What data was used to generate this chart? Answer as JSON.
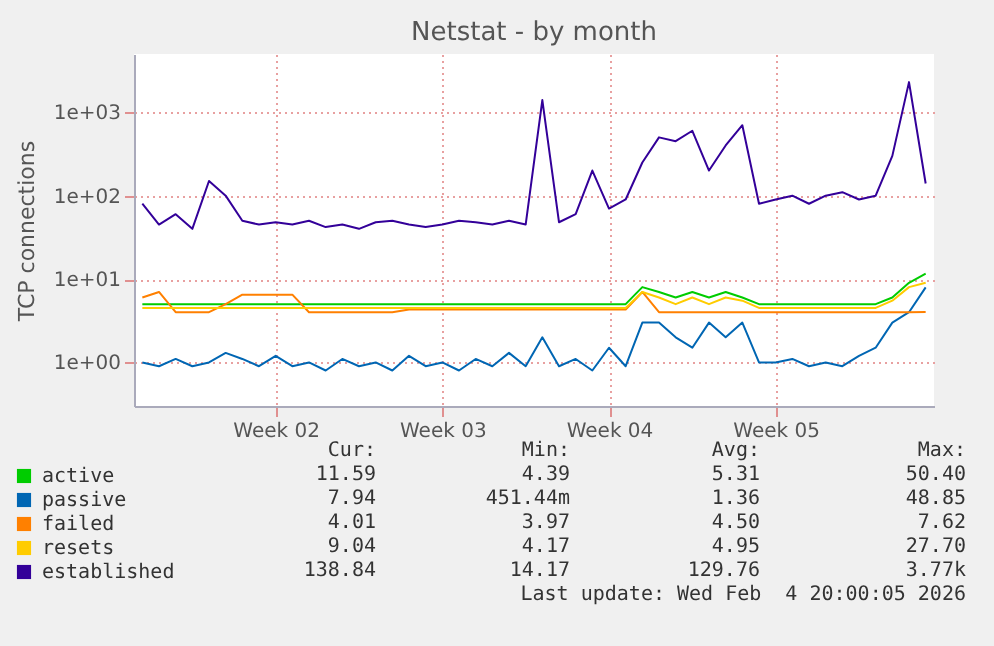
{
  "chart_data": {
    "type": "line",
    "title": "Netstat - by month",
    "ylabel": "TCP connections",
    "categories": [
      null,
      null,
      null,
      null,
      null,
      null,
      null,
      null,
      "Week 02",
      null,
      null,
      null,
      null,
      null,
      null,
      null,
      null,
      null,
      "Week 03",
      null,
      null,
      null,
      null,
      null,
      null,
      null,
      null,
      null,
      "Week 04",
      null,
      null,
      null,
      null,
      null,
      null,
      null,
      null,
      null,
      "Week 05",
      null,
      null,
      null,
      null,
      null,
      null,
      null,
      null,
      null
    ],
    "series": [
      {
        "name": "active",
        "color": "#00cc00",
        "values": [
          5,
          5,
          5,
          5,
          5,
          5,
          5,
          5,
          5,
          5,
          5,
          5,
          5,
          5,
          5,
          5,
          5,
          5,
          5,
          5,
          5,
          5,
          5,
          5,
          5,
          5,
          5,
          5,
          5,
          5,
          8,
          7,
          6,
          7,
          6,
          7,
          6,
          5,
          5,
          5,
          5,
          5,
          5,
          5,
          5,
          6,
          9,
          11.59
        ]
      },
      {
        "name": "passive",
        "color": "#0066b3",
        "values": [
          1,
          0.9,
          1.1,
          0.9,
          1,
          1.3,
          1.1,
          0.9,
          1.2,
          0.9,
          1,
          0.8,
          1.1,
          0.9,
          1,
          0.8,
          1.2,
          0.9,
          1,
          0.8,
          1.1,
          0.9,
          1.3,
          0.9,
          2,
          0.9,
          1.1,
          0.8,
          1.5,
          0.9,
          3,
          3,
          2,
          1.5,
          3,
          2,
          3,
          1,
          1,
          1.1,
          0.9,
          1,
          0.9,
          1.2,
          1.5,
          3,
          4,
          7.94
        ]
      },
      {
        "name": "failed",
        "color": "#ff8000",
        "values": [
          6,
          7,
          4,
          4,
          4,
          5,
          6.5,
          6.5,
          6.5,
          6.5,
          4,
          4,
          4,
          4,
          4,
          4,
          4.3,
          4.3,
          4.3,
          4.3,
          4.3,
          4.3,
          4.3,
          4.3,
          4.3,
          4.3,
          4.3,
          4.3,
          4.3,
          4.3,
          7,
          4,
          4,
          4,
          4,
          4,
          4,
          4,
          4,
          4,
          4,
          4,
          4,
          4,
          4,
          4,
          4,
          4.01
        ]
      },
      {
        "name": "resets",
        "color": "#ffcc00",
        "values": [
          4.5,
          4.5,
          4.5,
          4.5,
          4.5,
          4.5,
          4.5,
          4.5,
          4.5,
          4.5,
          4.5,
          4.5,
          4.5,
          4.5,
          4.5,
          4.5,
          4.5,
          4.5,
          4.5,
          4.5,
          4.5,
          4.5,
          4.5,
          4.5,
          4.5,
          4.5,
          4.5,
          4.5,
          4.5,
          4.5,
          7,
          6,
          5,
          6,
          5,
          6,
          5.5,
          4.5,
          4.5,
          4.5,
          4.5,
          4.5,
          4.5,
          4.5,
          4.5,
          5.5,
          8,
          9.04
        ]
      },
      {
        "name": "established",
        "color": "#330099",
        "values": [
          80,
          45,
          60,
          40,
          150,
          100,
          50,
          45,
          48,
          45,
          50,
          42,
          45,
          40,
          48,
          50,
          45,
          42,
          45,
          50,
          48,
          45,
          50,
          45,
          1400,
          48,
          60,
          200,
          70,
          90,
          250,
          500,
          450,
          600,
          200,
          400,
          700,
          80,
          90,
          100,
          80,
          100,
          110,
          90,
          100,
          300,
          2300,
          140
        ]
      }
    ],
    "ylim": [
      0.3,
      5000
    ],
    "yticks": [
      {
        "value": 1,
        "label": "1e+00"
      },
      {
        "value": 10,
        "label": "1e+01"
      },
      {
        "value": 100,
        "label": "1e+02"
      },
      {
        "value": 1000,
        "label": "1e+03"
      }
    ],
    "log": "y",
    "grid": true,
    "legend": "bottom left",
    "annotations": [
      "Cur:",
      "Min:",
      "Avg:",
      "Max:",
      "11.59",
      "4.39",
      "5.31",
      "50.40",
      "7.94",
      "451.44m",
      "1.36",
      "48.85",
      "4.01",
      "3.97",
      "4.50",
      "7.62",
      "9.04",
      "4.17",
      "4.95",
      "27.70",
      "138.84",
      "14.17",
      "129.76",
      "3.77k",
      "Last update: Wed Feb  4 20:00:05 2026"
    ]
  }
}
